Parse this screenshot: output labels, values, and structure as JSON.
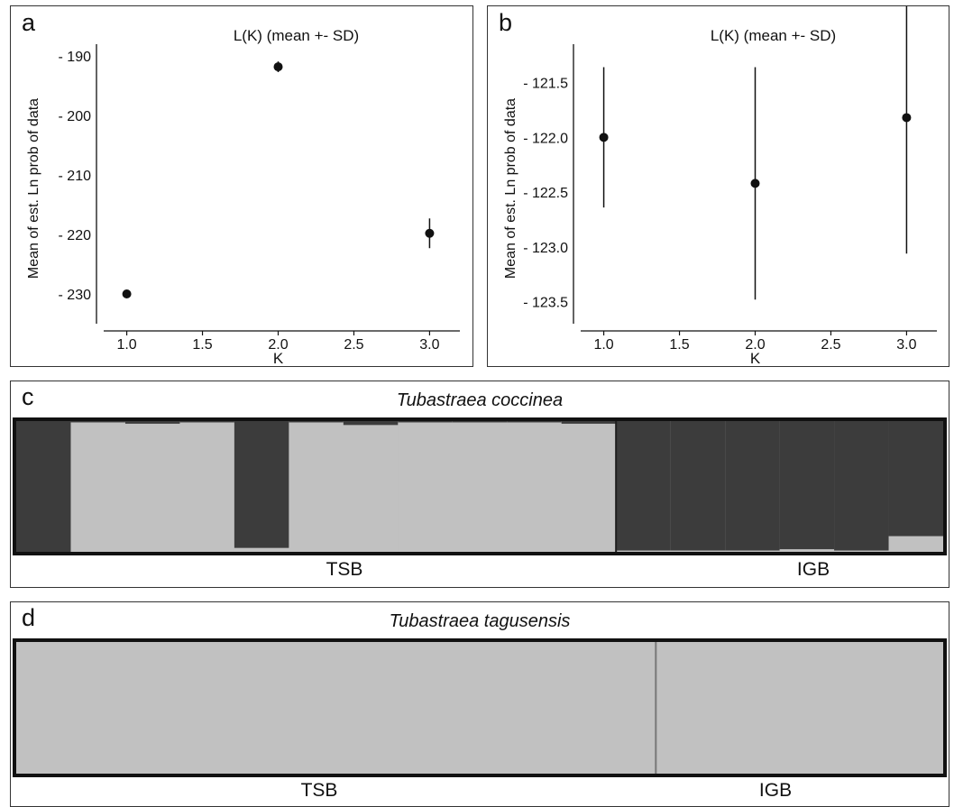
{
  "panels": {
    "a": {
      "letter": "a"
    },
    "b": {
      "letter": "b"
    },
    "c": {
      "letter": "c",
      "title": "Tubastraea coccinea",
      "groups": [
        "TSB",
        "IGB"
      ]
    },
    "d": {
      "letter": "d",
      "title": "Tubastraea tagusensis",
      "groups": [
        "TSB",
        "IGB"
      ]
    }
  },
  "colors": {
    "cluster1": "#3c3c3c",
    "cluster2": "#c1c1c1",
    "frame": "#111111"
  },
  "chart_data": [
    {
      "id": "a",
      "type": "scatter",
      "title": "L(K) (mean +- SD)",
      "xlabel": "K",
      "ylabel": "Mean of est. Ln prob of data",
      "x": [
        1,
        2,
        3
      ],
      "y": [
        -230.0,
        -191.8,
        -219.8
      ],
      "sd": [
        0.2,
        0.9,
        2.5
      ],
      "xlim": [
        0.8,
        3.2
      ],
      "ylim": [
        -235,
        -188
      ],
      "xticks": [
        1.0,
        1.5,
        2.0,
        2.5,
        3.0
      ],
      "xtick_labels": [
        "1.0",
        "1.5",
        "2.0",
        "2.5",
        "3.0"
      ],
      "yticks": [
        -190,
        -200,
        -210,
        -220,
        -230
      ],
      "ytick_labels": [
        "- 190",
        "- 200",
        "- 210",
        "- 220",
        "- 230"
      ],
      "grid": false
    },
    {
      "id": "b",
      "type": "scatter",
      "title": "L(K) (mean +- SD)",
      "xlabel": "K",
      "ylabel": "Mean of est. Ln prob of data",
      "x": [
        1,
        2,
        3
      ],
      "y": [
        -122.0,
        -122.42,
        -121.82
      ],
      "sd": [
        0.64,
        1.06,
        1.24
      ],
      "xlim": [
        0.8,
        3.2
      ],
      "ylim": [
        -123.7,
        -121.15
      ],
      "xticks": [
        1.0,
        1.5,
        2.0,
        2.5,
        3.0
      ],
      "xtick_labels": [
        "1.0",
        "1.5",
        "2.0",
        "2.5",
        "3.0"
      ],
      "yticks": [
        -121.5,
        -122.0,
        -122.5,
        -123.0,
        -123.5
      ],
      "ytick_labels": [
        "- 121.5",
        "- 122.0",
        "- 122.5",
        "- 123.0",
        "- 123.5"
      ],
      "grid": false
    },
    {
      "id": "c",
      "type": "bar",
      "title": "Tubastraea coccinea",
      "stacked": true,
      "groups": [
        "TSB",
        "IGB"
      ],
      "group_sizes": [
        11,
        6
      ],
      "cluster1_proportion": [
        1.0,
        0.01,
        0.02,
        0.01,
        0.97,
        0.01,
        0.03,
        0.01,
        0.01,
        0.01,
        0.02,
        0.99,
        0.99,
        0.99,
        0.98,
        0.99,
        0.88
      ]
    },
    {
      "id": "d",
      "type": "bar",
      "title": "Tubastraea tagusensis",
      "stacked": true,
      "groups": [
        "TSB",
        "IGB"
      ],
      "group_sizes": [
        1,
        1
      ],
      "group_widths": [
        0.69,
        0.31
      ],
      "cluster1_proportion": [
        0.0,
        0.0
      ]
    }
  ]
}
